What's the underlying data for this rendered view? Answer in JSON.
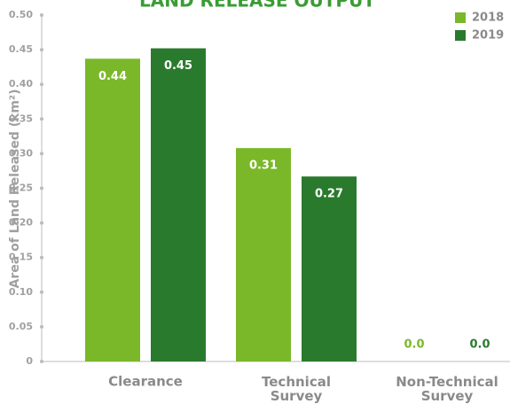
{
  "chart_data": {
    "type": "bar",
    "title": "LAND RELEASE OUTPUT",
    "y_label": "Area of Land Released (km²)",
    "categories": [
      "Clearance",
      "Technical Survey",
      "Non-Technical Survey"
    ],
    "series": [
      {
        "name": "2018",
        "color": "#7ab829",
        "values": [
          0.437,
          0.308,
          0
        ],
        "value_labels": [
          "0.44",
          "0.31",
          "0.0"
        ]
      },
      {
        "name": "2019",
        "color": "#2a7a2e",
        "values": [
          0.452,
          0.267,
          0
        ],
        "value_labels": [
          "0.45",
          "0.27",
          "0.0"
        ]
      }
    ],
    "ylim": [
      0,
      0.5
    ],
    "yticks": [
      0,
      0.05,
      {
        "value": 0.1,
        "label": "0.10"
      },
      0.15,
      {
        "value": 0.2,
        "label": "0.20"
      },
      0.25,
      {
        "value": 0.3,
        "label": "0.30"
      },
      0.35,
      {
        "value": 0.4,
        "label": "0.40"
      },
      0.45,
      {
        "value": 0.5,
        "label": "0.50"
      }
    ],
    "legend": "top-right"
  }
}
